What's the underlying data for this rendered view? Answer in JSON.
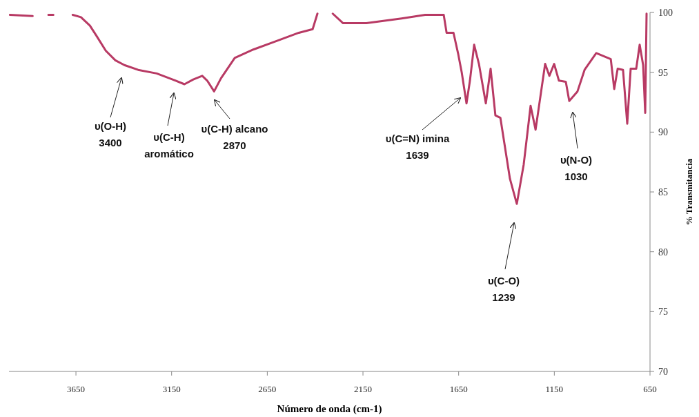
{
  "chart_data": {
    "type": "line",
    "xlabel": "Número de onda (cm-1)",
    "ylabel": "% Transmitancia",
    "xlim": [
      4000,
      650
    ],
    "xticks": [
      3650,
      3150,
      2650,
      2150,
      1650,
      1150,
      650
    ],
    "ylim": [
      70,
      100
    ],
    "yticks": [
      70,
      75,
      80,
      85,
      90,
      95,
      100
    ],
    "grid": false,
    "marker": "none",
    "line_style": "solid",
    "x": [
      3995,
      3876,
      3860,
      3794,
      3768,
      3740,
      3667,
      3624,
      3577,
      3541,
      3494,
      3444,
      3397,
      3325,
      3228,
      3145,
      3083,
      3037,
      2990,
      2964,
      2928,
      2892,
      2820,
      2723,
      2604,
      2485,
      2413,
      2388,
      2370,
      2330,
      2308,
      2254,
      2132,
      1948,
      1825,
      1728,
      1713,
      1677,
      1652,
      1634,
      1609,
      1591,
      1569,
      1544,
      1508,
      1483,
      1458,
      1432,
      1382,
      1346,
      1310,
      1274,
      1248,
      1198,
      1176,
      1151,
      1126,
      1090,
      1072,
      1029,
      992,
      931,
      855,
      837,
      819,
      791,
      769,
      751,
      722,
      704,
      686,
      675,
      668
    ],
    "series": [
      {
        "color": "#b83a64",
        "values": [
          99.8,
          99.7,
          null,
          99.8,
          99.8,
          null,
          99.8,
          99.6,
          98.9,
          98.0,
          96.8,
          96.0,
          95.6,
          95.2,
          94.9,
          94.4,
          94.0,
          94.4,
          94.7,
          94.3,
          93.4,
          94.5,
          96.2,
          96.9,
          97.6,
          98.3,
          98.6,
          99.9,
          null,
          null,
          99.9,
          99.1,
          99.1,
          99.5,
          99.8,
          99.8,
          98.3,
          98.3,
          96.5,
          95.0,
          92.4,
          94.3,
          97.3,
          95.7,
          92.4,
          95.3,
          91.4,
          91.2,
          86.1,
          84.0,
          87.3,
          92.2,
          90.2,
          95.7,
          94.7,
          95.7,
          94.3,
          94.2,
          92.6,
          93.4,
          95.2,
          96.6,
          96.1,
          93.6,
          95.3,
          95.2,
          90.7,
          95.3,
          95.3,
          97.3,
          95.6,
          91.6,
          99.9
        ]
      }
    ],
    "annotations": [
      "υ(O-H)\n3400",
      "υ(C-H)\naromático",
      "υ(C-H) alcano\n2870",
      "υ(C=N) imina\n1639",
      "υ(C-O)\n1239",
      "υ(N-O)\n1030"
    ]
  }
}
